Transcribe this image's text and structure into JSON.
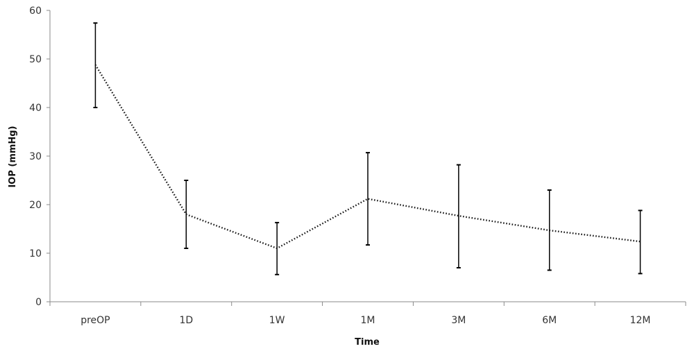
{
  "chart_data": {
    "type": "line",
    "title": "",
    "xlabel": "Time",
    "ylabel": "IOP (mmHg)",
    "categories": [
      "preOP",
      "1D",
      "1W",
      "1M",
      "3M",
      "6M",
      "12M"
    ],
    "series": [
      {
        "values": [
          48.8,
          18.0,
          11.0,
          21.2,
          17.7,
          14.7,
          12.4
        ],
        "error_low": [
          40.0,
          11.0,
          5.6,
          11.7,
          7.0,
          6.5,
          5.8
        ],
        "error_high": [
          57.4,
          25.0,
          16.3,
          30.7,
          28.2,
          23.0,
          18.8
        ]
      }
    ],
    "ylim": [
      0,
      60
    ],
    "yticks": [
      0,
      10,
      20,
      30,
      40,
      50,
      60
    ],
    "grid": false,
    "line_style": "dotted",
    "line_color": "#1a1a1a",
    "errorbar_color": "#000000"
  }
}
